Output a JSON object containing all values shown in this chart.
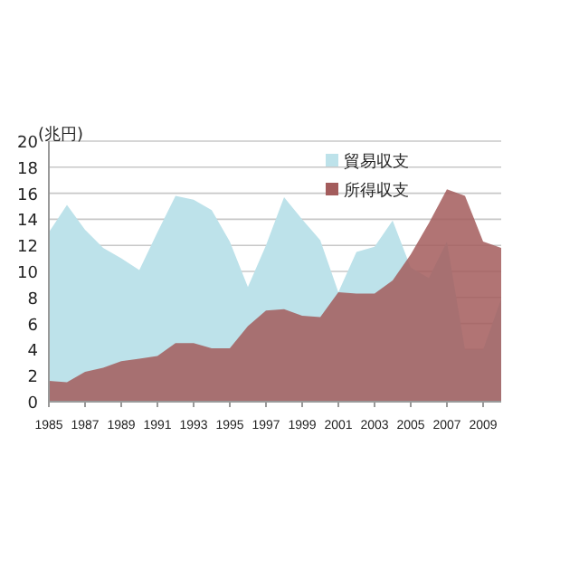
{
  "chart_data": {
    "type": "area",
    "ylabel": "(兆円)",
    "x": [
      1985,
      1986,
      1987,
      1988,
      1989,
      1990,
      1991,
      1992,
      1993,
      1994,
      1995,
      1996,
      1997,
      1998,
      1999,
      2000,
      2001,
      2002,
      2003,
      2004,
      2005,
      2006,
      2007,
      2008,
      2009,
      2010
    ],
    "series": [
      {
        "name": "貿易収支",
        "color": "#bde2ea",
        "values": [
          13.0,
          15.1,
          13.2,
          11.8,
          11.0,
          10.1,
          13.0,
          15.8,
          15.5,
          14.7,
          12.3,
          8.8,
          12.0,
          15.7,
          14.0,
          12.4,
          8.4,
          11.5,
          11.9,
          13.9,
          10.3,
          9.5,
          12.3,
          4.0,
          4.0,
          7.9
        ]
      },
      {
        "name": "所得収支",
        "color": "#a35c5c",
        "values": [
          1.6,
          1.5,
          2.3,
          2.6,
          3.1,
          3.3,
          3.5,
          4.5,
          4.5,
          4.1,
          4.1,
          5.8,
          7.0,
          7.1,
          6.6,
          6.5,
          8.4,
          8.3,
          8.3,
          9.3,
          11.3,
          13.7,
          16.3,
          15.8,
          12.3,
          11.8
        ]
      }
    ],
    "xlim": [
      1985,
      2010
    ],
    "xticks": [
      1985,
      1987,
      1989,
      1991,
      1993,
      1995,
      1997,
      1999,
      2001,
      2003,
      2005,
      2007,
      2009
    ],
    "ylim": [
      0,
      20
    ],
    "yticks": [
      0,
      2,
      4,
      6,
      8,
      10,
      12,
      14,
      16,
      18,
      20
    ],
    "grid": "y",
    "legend": "top right"
  }
}
